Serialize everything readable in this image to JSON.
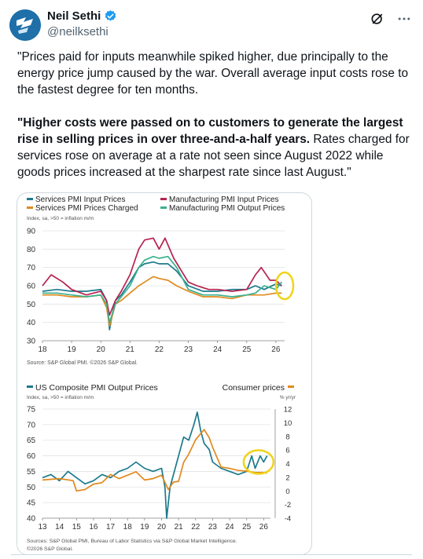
{
  "author": {
    "display_name": "Neil Sethi",
    "handle": "@neilksethi",
    "avatar_icon": "sp-logo-avatar",
    "verified_icon": "verified-badge-icon",
    "accent": "#1d9bf0"
  },
  "actions": {
    "grok_icon": "grok-icon",
    "more_icon": "more-icon"
  },
  "tweet": {
    "p1": "\"Prices paid for inputs meanwhile spiked higher, due principally to the energy price jump caused by the war. Overall average input costs rose to the fastest degree for ten months.",
    "p2_bold": "\"Higher costs were passed on to customers to generate the largest rise in selling prices in over three-and-a-half years.",
    "p2_rest": " Rates charged for services rose on average at a rate not seen since August 2022 while goods prices increased at the sharpest rate since last August.\""
  },
  "chart_data": [
    {
      "type": "line",
      "legend": [
        "Services PMI Input Prices",
        "Services PMI Prices Charged",
        "Manufacturing PMI Input Prices",
        "Manufacturing PMI Output Prices"
      ],
      "ylabel": "Index, sa, >50 = inflation m/m",
      "x_ticks": [
        "18",
        "19",
        "20",
        "21",
        "22",
        "23",
        "24",
        "25",
        "26"
      ],
      "y_ticks": [
        90,
        80,
        70,
        60,
        50,
        40,
        30
      ],
      "ylim": [
        30,
        90
      ],
      "xlim": [
        2018,
        2026.3
      ],
      "source": "Source: S&P Global PMI. ©2026 S&P Global.",
      "series": [
        {
          "name": "Services PMI Input Prices",
          "color": "#1c7a8c",
          "x": [
            2018.0,
            2018.5,
            2019.0,
            2019.5,
            2020.0,
            2020.2,
            2020.3,
            2020.4,
            2020.5,
            2020.7,
            2021.0,
            2021.3,
            2021.5,
            2021.8,
            2022.0,
            2022.3,
            2022.6,
            2023.0,
            2023.5,
            2024.0,
            2024.5,
            2025.0,
            2025.3,
            2025.6,
            2026.0,
            2026.2
          ],
          "y": [
            57,
            58,
            57,
            57,
            58,
            52,
            36,
            45,
            52,
            55,
            62,
            70,
            72,
            73,
            72,
            72,
            68,
            60,
            57,
            57,
            58,
            58,
            60,
            58,
            61,
            60
          ]
        },
        {
          "name": "Services PMI Prices Charged",
          "color": "#e08a1e",
          "x": [
            2018.0,
            2018.5,
            2019.0,
            2019.5,
            2020.0,
            2020.2,
            2020.3,
            2020.4,
            2020.5,
            2020.7,
            2021.0,
            2021.3,
            2021.5,
            2021.8,
            2022.0,
            2022.3,
            2022.6,
            2023.0,
            2023.5,
            2024.0,
            2024.5,
            2025.0,
            2025.3,
            2025.6,
            2026.0,
            2026.2
          ],
          "y": [
            55,
            55,
            54,
            54,
            55,
            48,
            38,
            44,
            50,
            52,
            56,
            60,
            62,
            65,
            64,
            63,
            60,
            57,
            54,
            54,
            53,
            55,
            55,
            55,
            56,
            56
          ]
        },
        {
          "name": "Manufacturing PMI Input Prices",
          "color": "#b5234f",
          "x": [
            2018.0,
            2018.3,
            2018.7,
            2019.0,
            2019.5,
            2020.0,
            2020.2,
            2020.3,
            2020.5,
            2020.7,
            2021.0,
            2021.3,
            2021.5,
            2021.8,
            2022.0,
            2022.2,
            2022.5,
            2023.0,
            2023.3,
            2023.7,
            2024.0,
            2024.5,
            2025.0,
            2025.3,
            2025.5,
            2025.8,
            2026.0,
            2026.2
          ],
          "y": [
            60,
            66,
            62,
            58,
            55,
            57,
            52,
            44,
            52,
            57,
            66,
            80,
            85,
            86,
            80,
            86,
            75,
            62,
            60,
            58,
            58,
            57,
            58,
            66,
            70,
            63,
            63,
            60
          ]
        },
        {
          "name": "Manufacturing PMI Output Prices",
          "color": "#3bb08f",
          "x": [
            2018.0,
            2018.5,
            2019.0,
            2019.5,
            2020.0,
            2020.2,
            2020.3,
            2020.5,
            2020.7,
            2021.0,
            2021.3,
            2021.5,
            2021.8,
            2022.0,
            2022.3,
            2022.6,
            2023.0,
            2023.5,
            2024.0,
            2024.5,
            2025.0,
            2025.3,
            2025.6,
            2026.0,
            2026.2
          ],
          "y": [
            56,
            56,
            55,
            54,
            55,
            50,
            40,
            50,
            54,
            60,
            70,
            74,
            76,
            75,
            76,
            70,
            58,
            55,
            55,
            54,
            55,
            56,
            60,
            58,
            62
          ]
        }
      ],
      "highlight_color": "#f0d419"
    },
    {
      "type": "line",
      "legend": [
        "US Composite PMI Output Prices",
        "Consumer prices"
      ],
      "ylabel": "Index, sa, >50 = inflation m/m",
      "ylabel_right": "% yr/yr",
      "x_ticks": [
        "13",
        "14",
        "15",
        "16",
        "17",
        "18",
        "19",
        "20",
        "21",
        "22",
        "23",
        "24",
        "25",
        "26"
      ],
      "y_ticks": [
        75,
        70,
        65,
        60,
        55,
        50,
        45,
        40
      ],
      "y_ticks_right": [
        12,
        10,
        8,
        6,
        4,
        2,
        0,
        -2,
        -4
      ],
      "ylim": [
        40,
        75
      ],
      "ylim_right": [
        -4,
        12
      ],
      "xlim": [
        2013,
        2026.4
      ],
      "source": "Sources: S&P Global PMI, Bureau of Labor Statistics via S&P Global Market Intelligence.",
      "source2": "©2026 S&P Global.",
      "series": [
        {
          "name": "US Composite PMI Output Prices",
          "color": "#1c7a8c",
          "x": [
            2013.0,
            2013.5,
            2014.0,
            2014.5,
            2015.0,
            2015.5,
            2016.0,
            2016.5,
            2017.0,
            2017.5,
            2018.0,
            2018.5,
            2019.0,
            2019.5,
            2020.0,
            2020.2,
            2020.3,
            2020.5,
            2020.8,
            2021.0,
            2021.3,
            2021.6,
            2021.9,
            2022.1,
            2022.3,
            2022.5,
            2022.8,
            2023.0,
            2023.5,
            2024.0,
            2024.5,
            2025.0,
            2025.3,
            2025.5,
            2025.8,
            2026.0,
            2026.2
          ],
          "y": [
            53,
            54,
            52,
            55,
            53,
            51,
            52,
            54,
            53,
            55,
            56,
            58,
            56,
            55,
            56,
            50,
            40,
            50,
            56,
            60,
            66,
            65,
            70,
            74,
            68,
            64,
            62,
            58,
            56,
            55,
            54,
            55,
            60,
            56,
            60,
            58,
            60
          ]
        },
        {
          "name": "Consumer prices",
          "color": "#e08a1e",
          "x": [
            2013.0,
            2014.0,
            2014.8,
            2015.0,
            2015.5,
            2016.0,
            2016.5,
            2017.0,
            2017.5,
            2018.0,
            2018.5,
            2019.0,
            2019.5,
            2020.0,
            2020.4,
            2020.7,
            2021.0,
            2021.3,
            2021.6,
            2022.0,
            2022.5,
            2022.8,
            2023.0,
            2023.5,
            2024.0,
            2024.5,
            2025.0,
            2025.5,
            2026.0,
            2026.2
          ],
          "y": [
            1.6,
            1.8,
            1.5,
            0.0,
            0.2,
            1.0,
            1.2,
            2.4,
            1.8,
            2.3,
            2.8,
            1.6,
            1.8,
            2.3,
            0.2,
            1.3,
            1.4,
            4.2,
            5.4,
            7.5,
            9.0,
            7.8,
            6.4,
            3.5,
            3.3,
            3.0,
            2.9,
            2.7,
            2.7,
            2.6
          ]
        }
      ],
      "highlight_color": "#f0d419"
    }
  ]
}
